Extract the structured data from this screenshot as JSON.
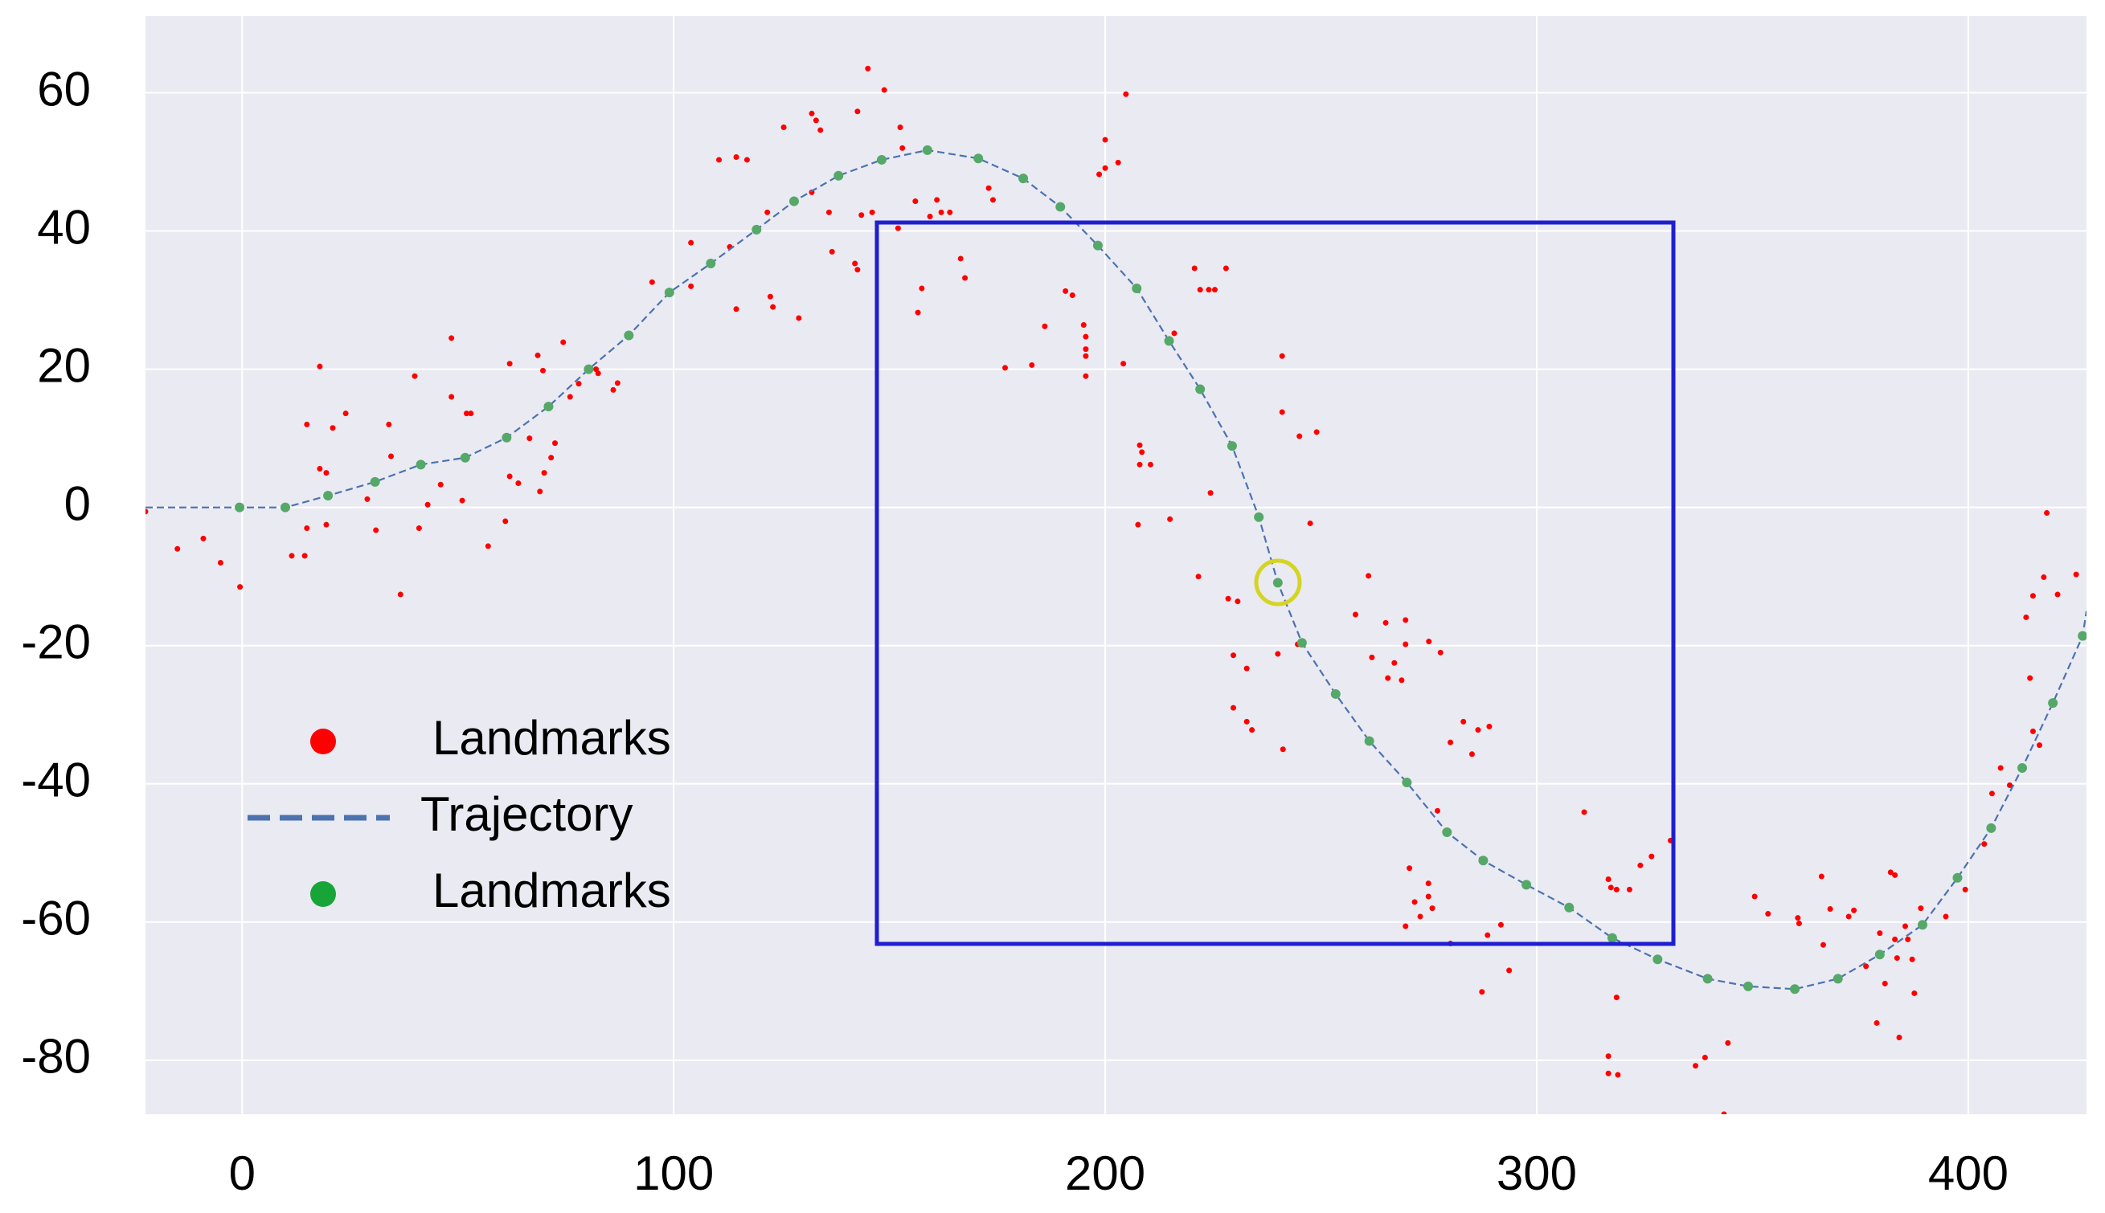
{
  "chart_data": {
    "type": "scatter",
    "xlim": [
      -22.4,
      427.4
    ],
    "ylim": [
      -87.8,
      71.1
    ],
    "xticks": [
      0,
      100,
      200,
      300,
      400
    ],
    "yticks": [
      -80,
      -60,
      -40,
      -20,
      0,
      20,
      40,
      60
    ],
    "grid": true,
    "legend": "left",
    "series": [
      {
        "name": "Landmarks",
        "type": "scatter",
        "color": "#ff0000",
        "x": [
          -22.4,
          -15,
          -9,
          -5,
          -0.5,
          11.5,
          14.5,
          15,
          15,
          18,
          18,
          19.5,
          19.5,
          21,
          24,
          29,
          31,
          34,
          34.5,
          36.7,
          40,
          41,
          43,
          46,
          48.5,
          48.5,
          51,
          52,
          53,
          57,
          61,
          62,
          62,
          64,
          66.6,
          68.5,
          69,
          70,
          71.6,
          72.5,
          69.7,
          74.4,
          76,
          78,
          82,
          86,
          87,
          82.5,
          95,
          104,
          104,
          110.5,
          114.5,
          117,
          113,
          114.5,
          121.7,
          122.4,
          123,
          125.5,
          129,
          132,
          134,
          132,
          133,
          136,
          136.7,
          142.6,
          145,
          142,
          142.6,
          143.5,
          146,
          148.8,
          152.5,
          152,
          153,
          156,
          156.6,
          157.5,
          159.4,
          161,
          162,
          164,
          166.5,
          167.5,
          173,
          174,
          176.8,
          183,
          186,
          190.8,
          192.4,
          195,
          195.5,
          195.5,
          195.5,
          195.5,
          198.6,
          200,
          200,
          203,
          204.8,
          204.2,
          208,
          208,
          208.5,
          210.5,
          207.6,
          215,
          216,
          220.7,
          222,
          224,
          225.4,
          228,
          221.6,
          224.4,
          228.5,
          230.7,
          229.7,
          229.7,
          232.8,
          234,
          232.8,
          240,
          241,
          241,
          241.2,
          245,
          249,
          247.5,
          244.6,
          258,
          261,
          261.8,
          265,
          267,
          269.6,
          269.6,
          265.5,
          268.7,
          275,
          277.7,
          280,
          283,
          285,
          286.4,
          289,
          277,
          270.5,
          271.7,
          274.9,
          274.9,
          275.8,
          273,
          269.6,
          280,
          291.7,
          288.6,
          293.6,
          287.3,
          311,
          316.6,
          317.2,
          318.5,
          321.5,
          324,
          326.6,
          331,
          318.5,
          316.6,
          316.6,
          318.8,
          336.8,
          339,
          344.3,
          343.4,
          350.5,
          353.6,
          360.5,
          360.8,
          366,
          366.4,
          368,
          372.3,
          373.5,
          376.3,
          379.5,
          378.8,
          380.7,
          382,
          383,
          383,
          383.5,
          384,
          385.4,
          386,
          387,
          387.5,
          389,
          394.8,
          399.3,
          403.7,
          405.5,
          407.5,
          409.6,
          413.4,
          414.3,
          415,
          416.5,
          417.5,
          418.2,
          420.7,
          415,
          425
        ],
        "values": [
          -0.6,
          -6,
          -4.5,
          -8,
          -11.5,
          -7,
          -7,
          -3,
          12,
          20.4,
          5.6,
          5,
          -2.5,
          11.5,
          13.6,
          1.2,
          -3.3,
          12,
          7.4,
          -12.6,
          19,
          -3,
          0.4,
          3.3,
          24.5,
          16,
          1,
          13.6,
          13.6,
          -5.6,
          -2,
          20.8,
          4.5,
          3.5,
          10,
          22,
          2.3,
          5,
          7.2,
          9.3,
          19.8,
          23.9,
          16,
          17.9,
          20,
          17,
          18,
          19.4,
          32.6,
          32,
          38.3,
          50.3,
          50.7,
          50.3,
          37.7,
          28.7,
          42.7,
          30.5,
          29,
          55,
          27.4,
          57,
          54.6,
          45.6,
          56,
          42.7,
          37,
          57.3,
          63.5,
          35.3,
          34.4,
          42.3,
          42.7,
          60.4,
          55,
          40.4,
          52,
          44.3,
          28.2,
          31.7,
          42.1,
          44.5,
          42.7,
          42.7,
          36,
          33.2,
          46.2,
          44.5,
          20.2,
          20.6,
          26.2,
          31.3,
          30.7,
          26.4,
          24.7,
          22.9,
          21.9,
          19,
          48.2,
          53.2,
          49.1,
          49.9,
          59.8,
          20.8,
          9,
          6.2,
          8,
          6.2,
          -2.5,
          -1.7,
          25.2,
          34.6,
          31.5,
          31.5,
          31.5,
          34.6,
          -10,
          2.1,
          -13.2,
          -13.6,
          -21.4,
          -29,
          -31,
          -32.2,
          -23.3,
          -21.2,
          21.9,
          13.8,
          -35,
          10.3,
          10.9,
          -2.3,
          -19.8,
          -15.5,
          -9.9,
          -21.7,
          -16.7,
          -22.5,
          -16.3,
          -19.8,
          -24.7,
          -25,
          -19.4,
          -21,
          -34,
          -31,
          -35.7,
          -32.2,
          -31.7,
          -43.9,
          -52.2,
          -57.1,
          -54.4,
          -56.3,
          -58,
          -59.2,
          -60.6,
          -63.1,
          -60.4,
          -61.9,
          -67,
          -70.1,
          -44.1,
          -53.8,
          -55,
          -55.3,
          -55.3,
          -51.8,
          -50.5,
          -48.2,
          -70.9,
          -79.4,
          -81.9,
          -82.1,
          -80.8,
          -79.6,
          -77.5,
          -87.8,
          -56.3,
          -58.8,
          -59.4,
          -60.2,
          -53.4,
          -63.3,
          -58.1,
          -59.2,
          -58.3,
          -66.4,
          -61.6,
          -74.6,
          -68.9,
          -52.8,
          -53.2,
          -62.5,
          -65.2,
          -76.7,
          -60.6,
          -62.5,
          -65.4,
          -70.3,
          -58,
          -59.2,
          -55.3,
          -48.7,
          -41.4,
          -37.7,
          -40.2,
          -15.9,
          -24.7,
          -12.8,
          -34.4,
          -10.1,
          -0.8,
          -12.6,
          -32.4,
          -9.7
        ]
      },
      {
        "name": "Trajectory",
        "type": "line",
        "color": "#4c72b0",
        "x": [
          -22.4,
          -0.6,
          10,
          19.9,
          30.8,
          41.4,
          51.7,
          61.3,
          71,
          80.3,
          89.6,
          99,
          108.6,
          119.2,
          127.9,
          138.2,
          148.2,
          158.8,
          170.6,
          181,
          189.6,
          198.3,
          207.3,
          214.8,
          222,
          229.4,
          235.6,
          240,
          245.6,
          253.4,
          261.2,
          269.9,
          279.2,
          287.6,
          297.6,
          307.5,
          317.5,
          328,
          339.6,
          349,
          359.8,
          369.8,
          379.5,
          389.4,
          397.5,
          405.3,
          412.5,
          419.6,
          426.5,
          427.4
        ],
        "values": [
          0,
          0,
          0,
          1.7,
          3.7,
          6.2,
          7.2,
          10.1,
          14.6,
          20,
          24.9,
          31.1,
          35.3,
          40.2,
          44.3,
          48,
          50.3,
          51.7,
          50.5,
          47.6,
          43.5,
          37.9,
          31.7,
          24.1,
          17.1,
          8.9,
          -1.4,
          -10.9,
          -19.6,
          -27,
          -33.8,
          -39.8,
          -47,
          -51.1,
          -54.6,
          -57.9,
          -62.3,
          -65.4,
          -68.2,
          -69.3,
          -69.7,
          -68.2,
          -64.7,
          -60.4,
          -53.6,
          -46.4,
          -37.7,
          -28.3,
          -18.6,
          -15
        ]
      },
      {
        "name": "Landmarks",
        "type": "scatter",
        "color": "#55a868",
        "x": [
          -0.6,
          10,
          19.9,
          30.8,
          41.4,
          51.7,
          61.3,
          71,
          80.3,
          89.6,
          99,
          108.6,
          119.2,
          127.9,
          138.2,
          148.2,
          158.8,
          170.6,
          181,
          189.6,
          198.3,
          207.3,
          214.8,
          222,
          229.4,
          235.6,
          240,
          245.6,
          253.4,
          261.2,
          269.9,
          279.2,
          287.6,
          297.6,
          307.5,
          317.5,
          328,
          339.6,
          349,
          359.8,
          369.8,
          379.5,
          389.4,
          397.5,
          405.3,
          412.5,
          419.6,
          426.5
        ],
        "values": [
          0,
          0,
          1.7,
          3.7,
          6.2,
          7.2,
          10.1,
          14.6,
          20,
          24.9,
          31.1,
          35.3,
          40.2,
          44.3,
          48,
          50.3,
          51.7,
          50.5,
          47.6,
          43.5,
          37.9,
          31.7,
          24.1,
          17.1,
          8.9,
          -1.4,
          -10.9,
          -19.6,
          -27,
          -33.8,
          -39.8,
          -47,
          -51.1,
          -54.6,
          -57.9,
          -62.3,
          -65.4,
          -68.2,
          -69.3,
          -69.7,
          -68.2,
          -64.7,
          -60.4,
          -53.6,
          -46.4,
          -37.7,
          -28.3,
          -18.6
        ]
      }
    ]
  }
}
